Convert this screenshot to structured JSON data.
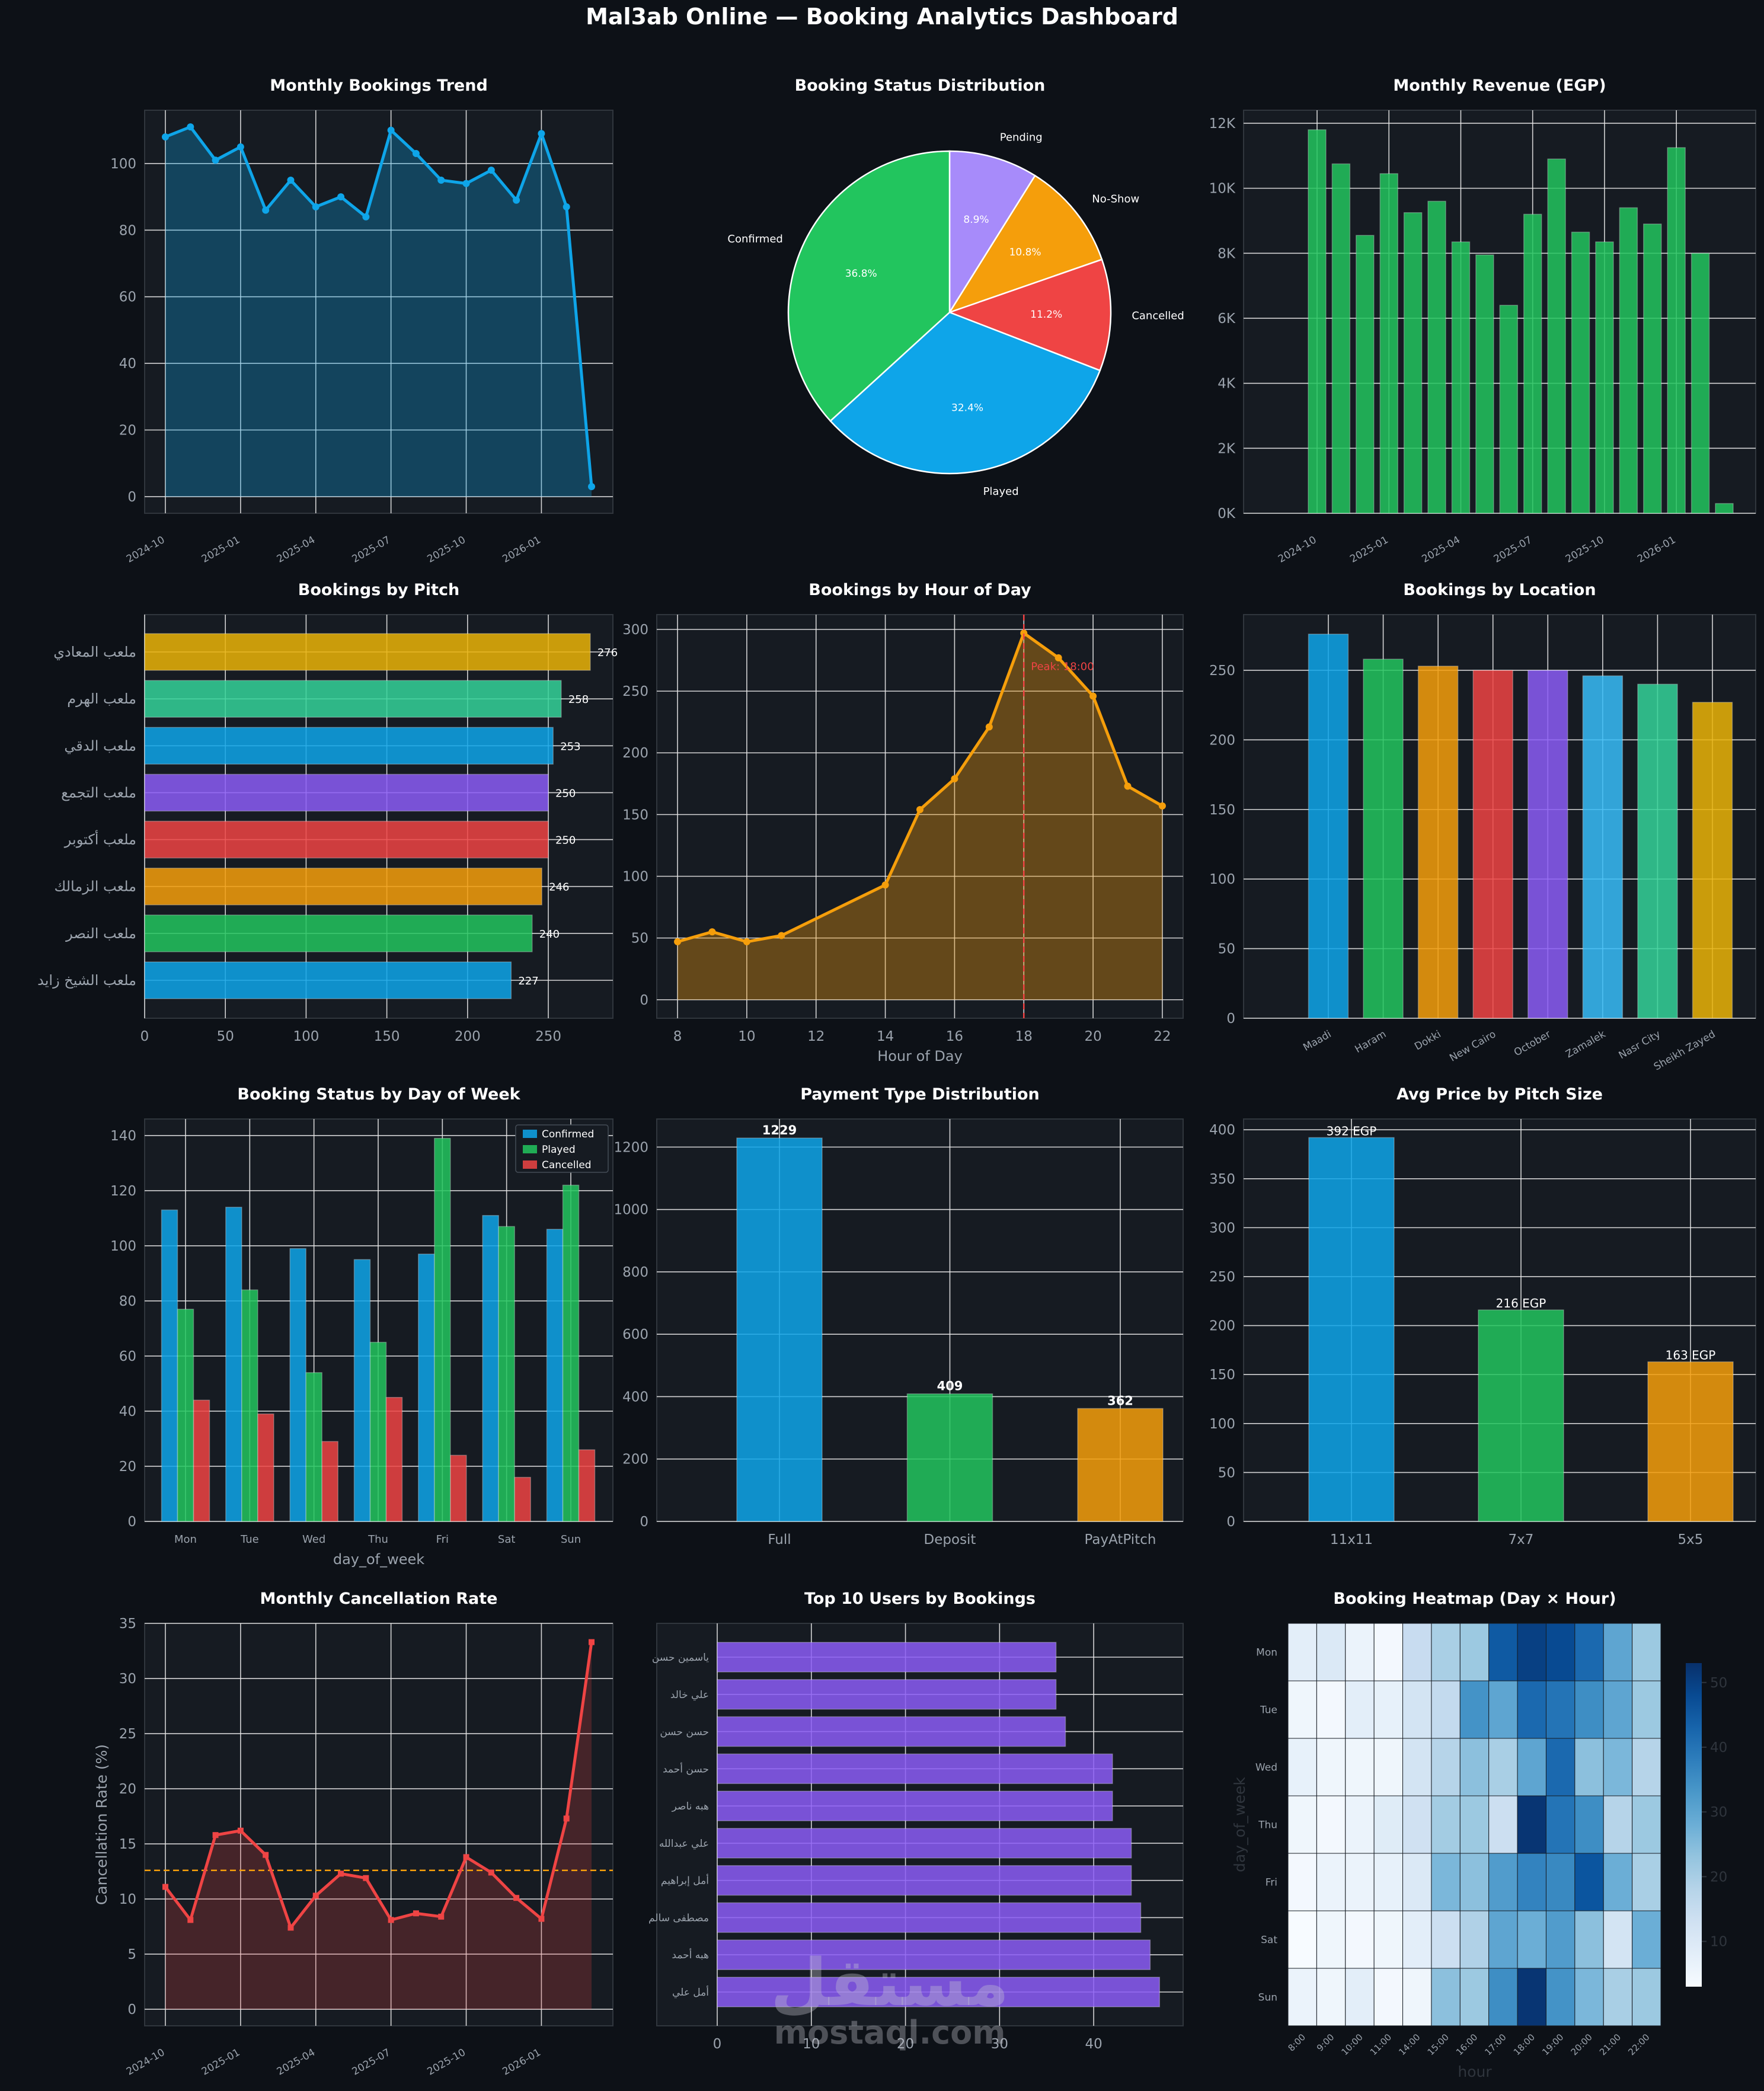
{
  "suptitle": "Mal3ab Online — Booking Analytics Dashboard",
  "watermark": {
    "logo": "مستقل",
    "text": "mostaql.com"
  },
  "colors": {
    "background": "#0d1117",
    "panel": "#161b22",
    "blue": "#0ea5e9",
    "green": "#22c55e",
    "amber": "#f59e0b",
    "red": "#ef4444",
    "purple": "#8b5cf6",
    "purple_light": "#a78bfa",
    "emerald": "#34d399",
    "gold": "#eab308",
    "orange": "#f59e0b"
  },
  "chart_data": [
    {
      "id": "monthly_trend",
      "type": "area",
      "title": "Monthly Bookings Trend",
      "x": [
        "2024-10",
        "2024-11",
        "2024-12",
        "2025-01",
        "2025-02",
        "2025-03",
        "2025-04",
        "2025-05",
        "2025-06",
        "2025-07",
        "2025-08",
        "2025-09",
        "2025-10",
        "2025-11",
        "2025-12",
        "2026-01",
        "2026-02",
        "2026-03"
      ],
      "values": [
        108,
        111,
        101,
        105,
        86,
        95,
        87,
        90,
        84,
        110,
        103,
        95,
        94,
        98,
        89,
        109,
        87,
        3
      ],
      "xticks": [
        "2024-10",
        "2025-01",
        "2025-04",
        "2025-07",
        "2025-10",
        "2026-01"
      ],
      "ylim": [
        -5,
        116
      ],
      "yticks": [
        0,
        20,
        40,
        60,
        80,
        100
      ],
      "color": "#0ea5e9"
    },
    {
      "id": "status_pie",
      "type": "pie",
      "title": "Booking Status Distribution",
      "labels": [
        "Pending",
        "No-Show",
        "Cancelled",
        "Played",
        "Confirmed"
      ],
      "values": [
        8.9,
        10.8,
        11.2,
        32.4,
        36.8
      ],
      "pct_labels": [
        "8.9%",
        "10.8%",
        "11.2%",
        "32.4%",
        "36.8%"
      ],
      "colors": [
        "#a78bfa",
        "#f59e0b",
        "#ef4444",
        "#0ea5e9",
        "#22c55e"
      ]
    },
    {
      "id": "monthly_revenue",
      "type": "bar",
      "title": "Monthly Revenue (EGP)",
      "x": [
        "2024-10",
        "2024-11",
        "2024-12",
        "2025-01",
        "2025-02",
        "2025-03",
        "2025-04",
        "2025-05",
        "2025-06",
        "2025-07",
        "2025-08",
        "2025-09",
        "2025-10",
        "2025-11",
        "2025-12",
        "2026-01",
        "2026-02",
        "2026-03"
      ],
      "values": [
        11800,
        10750,
        8550,
        10450,
        9250,
        9600,
        8350,
        7950,
        6400,
        9200,
        10900,
        8650,
        8350,
        9400,
        8900,
        11250,
        8000,
        300
      ],
      "xticks": [
        "2024-10",
        "2025-01",
        "2025-04",
        "2025-07",
        "2025-10",
        "2026-01"
      ],
      "ylim": [
        0,
        12400
      ],
      "yticks": [
        0,
        2000,
        4000,
        6000,
        8000,
        10000,
        12000
      ],
      "ytick_labels": [
        "0K",
        "2K",
        "4K",
        "6K",
        "8K",
        "10K",
        "12K"
      ],
      "color": "#22c55e"
    },
    {
      "id": "by_pitch",
      "type": "bar",
      "orientation": "horizontal",
      "title": "Bookings by Pitch",
      "categories": [
        "ملعب المعادي",
        "ملعب الهرم",
        "ملعب الدقي",
        "ملعب التجمع",
        "ملعب أكتوبر",
        "ملعب الزمالك",
        "ملعب النصر",
        "ملعب الشيخ زايد"
      ],
      "values": [
        276,
        258,
        253,
        250,
        250,
        246,
        240,
        227
      ],
      "value_labels": [
        "276",
        "258",
        "253",
        "250",
        "250",
        "246",
        "240",
        "227"
      ],
      "colors": [
        "#eab308",
        "#34d399",
        "#0ea5e9",
        "#8b5cf6",
        "#ef4444",
        "#f59e0b",
        "#22c55e",
        "#0ea5e9"
      ],
      "xlim": [
        0,
        290
      ],
      "xticks": [
        0,
        50,
        100,
        150,
        200,
        250
      ]
    },
    {
      "id": "by_hour",
      "type": "area",
      "title": "Bookings by Hour of Day",
      "xlabel": "Hour of Day",
      "x": [
        8,
        9,
        10,
        11,
        14,
        15,
        16,
        17,
        18,
        19,
        20,
        21,
        22
      ],
      "values": [
        47,
        55,
        47,
        52,
        93,
        154,
        179,
        221,
        297,
        277,
        246,
        173,
        157
      ],
      "xlim": [
        7.4,
        22.6
      ],
      "xticks": [
        8,
        10,
        12,
        14,
        16,
        18,
        20,
        22
      ],
      "ylim": [
        -15,
        312
      ],
      "yticks": [
        0,
        50,
        100,
        150,
        200,
        250,
        300
      ],
      "peak_x": 18,
      "peak_label": "Peak: 18:00",
      "color": "#f59e0b"
    },
    {
      "id": "by_location",
      "type": "bar",
      "title": "Bookings by Location",
      "categories": [
        "Maadi",
        "Haram",
        "Dokki",
        "New Cairo",
        "October",
        "Zamalek",
        "Nasr City",
        "Sheikh Zayed"
      ],
      "values": [
        276,
        258,
        253,
        250,
        250,
        246,
        240,
        227
      ],
      "colors": [
        "#0ea5e9",
        "#22c55e",
        "#f59e0b",
        "#ef4444",
        "#8b5cf6",
        "#38bdf8",
        "#34d399",
        "#eab308"
      ],
      "ylim": [
        0,
        290
      ],
      "yticks": [
        0,
        50,
        100,
        150,
        200,
        250
      ]
    },
    {
      "id": "status_by_day",
      "type": "bar",
      "title": "Booking Status by Day of Week",
      "xlabel": "day_of_week",
      "categories": [
        "Mon",
        "Tue",
        "Wed",
        "Thu",
        "Fri",
        "Sat",
        "Sun"
      ],
      "series": [
        {
          "name": "Confirmed",
          "values": [
            113,
            114,
            99,
            95,
            97,
            111,
            106
          ],
          "color": "#0ea5e9"
        },
        {
          "name": "Played",
          "values": [
            77,
            84,
            54,
            65,
            139,
            107,
            122
          ],
          "color": "#22c55e"
        },
        {
          "name": "Cancelled",
          "values": [
            44,
            39,
            29,
            45,
            24,
            16,
            26
          ],
          "color": "#ef4444"
        }
      ],
      "ylim": [
        0,
        146
      ],
      "yticks": [
        0,
        20,
        40,
        60,
        80,
        100,
        120,
        140
      ],
      "legend": "top-right"
    },
    {
      "id": "payment_type",
      "type": "bar",
      "title": "Payment Type Distribution",
      "categories": [
        "Full",
        "Deposit",
        "PayAtPitch"
      ],
      "values": [
        1229,
        409,
        362
      ],
      "value_labels": [
        "1229",
        "409",
        "362"
      ],
      "colors": [
        "#0ea5e9",
        "#22c55e",
        "#f59e0b"
      ],
      "ylim": [
        0,
        1290
      ],
      "yticks": [
        0,
        200,
        400,
        600,
        800,
        1000,
        1200
      ]
    },
    {
      "id": "price_by_size",
      "type": "bar",
      "title": "Avg Price by Pitch Size",
      "categories": [
        "11x11",
        "7x7",
        "5x5"
      ],
      "values": [
        392,
        216,
        163
      ],
      "value_labels": [
        "392 EGP",
        "216 EGP",
        "163 EGP"
      ],
      "colors": [
        "#0ea5e9",
        "#22c55e",
        "#f59e0b"
      ],
      "ylim": [
        0,
        411
      ],
      "yticks": [
        0,
        50,
        100,
        150,
        200,
        250,
        300,
        350,
        400
      ]
    },
    {
      "id": "cancel_rate",
      "type": "area",
      "title": "Monthly Cancellation Rate",
      "ylabel": "Cancellation Rate (%)",
      "x": [
        "2024-10",
        "2024-11",
        "2024-12",
        "2025-01",
        "2025-02",
        "2025-03",
        "2025-04",
        "2025-05",
        "2025-06",
        "2025-07",
        "2025-08",
        "2025-09",
        "2025-10",
        "2025-11",
        "2025-12",
        "2026-01",
        "2026-02",
        "2026-03"
      ],
      "values": [
        11.1,
        8.1,
        15.8,
        16.2,
        14.0,
        7.4,
        10.3,
        12.3,
        11.9,
        8.1,
        8.7,
        8.4,
        13.8,
        12.4,
        10.1,
        8.2,
        17.3,
        33.3
      ],
      "mean": 12.6,
      "xticks": [
        "2024-10",
        "2025-01",
        "2025-04",
        "2025-07",
        "2025-10",
        "2026-01"
      ],
      "ylim": [
        -1.5,
        35
      ],
      "yticks": [
        0,
        5,
        10,
        15,
        20,
        25,
        30,
        35
      ],
      "color": "#ef4444"
    },
    {
      "id": "top_users",
      "type": "bar",
      "orientation": "horizontal",
      "title": "Top 10 Users by Bookings",
      "categories": [
        "ياسمين حسن",
        "علي خالد",
        "حسن حسن",
        "حسن أحمد",
        "هبه ناصر",
        "علي عبدالله",
        "أمل إبراهيم",
        "مصطفى سالم",
        "هبه أحمد",
        "أمل علي"
      ],
      "values": [
        36,
        36,
        37,
        42,
        42,
        44,
        44,
        45,
        46,
        47
      ],
      "xlim": [
        0,
        49.5
      ],
      "xticks": [
        0,
        10,
        20,
        30,
        40
      ],
      "color": "#8b5cf6"
    },
    {
      "id": "heatmap",
      "type": "heatmap",
      "title": "Booking Heatmap (Day × Hour)",
      "xlabel": "hour",
      "ylabel": "day_of_week",
      "x": [
        "8:00",
        "9:00",
        "10:00",
        "11:00",
        "14:00",
        "15:00",
        "16:00",
        "17:00",
        "18:00",
        "19:00",
        "20:00",
        "21:00",
        "22:00"
      ],
      "y": [
        "Mon",
        "Tue",
        "Wed",
        "Thu",
        "Fri",
        "Sat",
        "Sun"
      ],
      "z": [
        [
          8,
          10,
          6,
          4,
          15,
          20,
          22,
          45,
          50,
          48,
          42,
          30,
          22
        ],
        [
          5,
          4,
          8,
          7,
          12,
          16,
          34,
          30,
          42,
          40,
          35,
          30,
          22
        ],
        [
          7,
          5,
          5,
          5,
          12,
          18,
          24,
          20,
          30,
          42,
          24,
          26,
          18
        ],
        [
          5,
          4,
          6,
          9,
          13,
          21,
          22,
          14,
          52,
          40,
          35,
          18,
          22
        ],
        [
          4,
          6,
          6,
          7,
          10,
          26,
          24,
          32,
          37,
          36,
          46,
          28,
          20
        ],
        [
          3,
          5,
          4,
          5,
          8,
          14,
          19,
          30,
          28,
          32,
          24,
          12,
          28
        ],
        [
          6,
          5,
          8,
          4,
          5,
          24,
          22,
          35,
          52,
          34,
          26,
          20,
          22
        ]
      ],
      "zlim": [
        3,
        53
      ],
      "colorbar_ticks": [
        10,
        20,
        30,
        40,
        50
      ],
      "colormap": "Blues"
    }
  ]
}
